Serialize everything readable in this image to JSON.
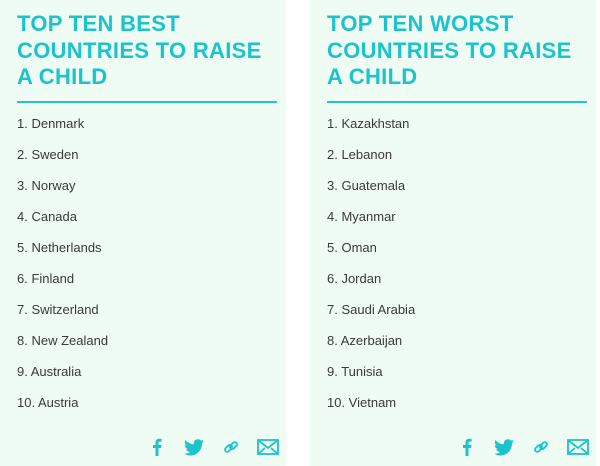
{
  "cards": [
    {
      "title": "TOP TEN BEST COUNTRIES TO RAISE A CHILD",
      "items": [
        "1. Denmark",
        "2. Sweden",
        "3. Norway",
        "4. Canada",
        "5. Netherlands",
        "6. Finland",
        "7. Switzerland",
        "8. New Zealand",
        "9. Australia",
        "10. Austria"
      ]
    },
    {
      "title": "TOP TEN WORST COUNTRIES TO RAISE A CHILD",
      "items": [
        "1. Kazakhstan",
        "2. Lebanon",
        "3. Guatemala",
        "4. Myanmar",
        "5. Oman",
        "6. Jordan",
        "7. Saudi Arabia",
        "8. Azerbaijan",
        "9. Tunisia",
        "10. Vietnam"
      ]
    }
  ],
  "share_icons": [
    "facebook-icon",
    "twitter-icon",
    "link-icon",
    "email-icon"
  ],
  "colors": {
    "accent": "#1cc3cc",
    "card_background": "#eefcf4",
    "text": "#3a3a3a"
  }
}
